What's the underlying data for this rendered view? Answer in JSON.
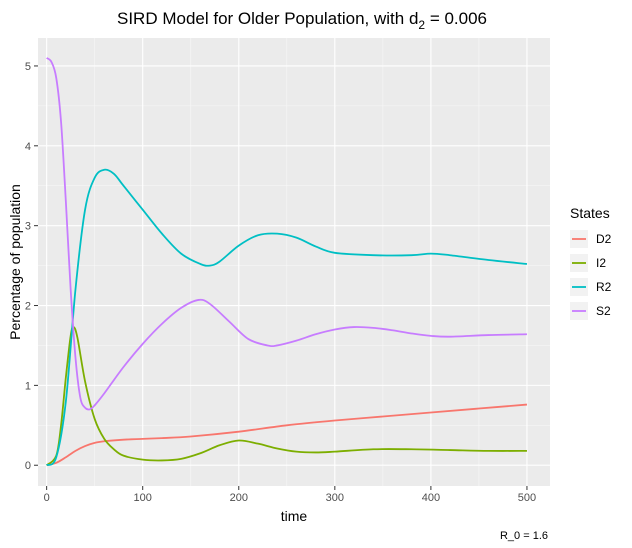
{
  "chart_data": {
    "type": "line",
    "title_main": "SIRD Model for Older Population, with d",
    "title_sub": "2",
    "title_tail": " = 0.006",
    "xlabel": "time",
    "ylabel": "Percentage of population",
    "caption": "R_0 = 1.6",
    "xlim": [
      -9,
      524
    ],
    "ylim": [
      -0.26,
      5.35
    ],
    "x_ticks": [
      0,
      100,
      200,
      300,
      400,
      500
    ],
    "y_ticks": [
      0,
      1,
      2,
      3,
      4,
      5
    ],
    "x_minor": [
      50,
      150,
      250,
      350,
      450
    ],
    "y_minor": [
      0.5,
      1.5,
      2.5,
      3.5,
      4.5
    ],
    "grid": true,
    "legend_title": "States",
    "legend_position": "right",
    "series": [
      {
        "name": "D2",
        "color": "#F8766D",
        "x": [
          0,
          10,
          20,
          30,
          40,
          50,
          60,
          80,
          100,
          120,
          150,
          200,
          250,
          300,
          350,
          400,
          450,
          500
        ],
        "y": [
          0,
          0.03,
          0.1,
          0.18,
          0.24,
          0.28,
          0.3,
          0.32,
          0.33,
          0.34,
          0.36,
          0.42,
          0.5,
          0.56,
          0.61,
          0.66,
          0.71,
          0.76
        ]
      },
      {
        "name": "I2",
        "color": "#7CAE00",
        "x": [
          0,
          10,
          15,
          20,
          25,
          28,
          32,
          40,
          50,
          60,
          70,
          80,
          100,
          120,
          140,
          160,
          180,
          200,
          220,
          240,
          260,
          280,
          300,
          340,
          380,
          420,
          460,
          500
        ],
        "y": [
          0,
          0.12,
          0.5,
          1.1,
          1.62,
          1.73,
          1.6,
          1.05,
          0.58,
          0.33,
          0.2,
          0.12,
          0.07,
          0.06,
          0.08,
          0.15,
          0.25,
          0.31,
          0.27,
          0.21,
          0.17,
          0.16,
          0.17,
          0.2,
          0.2,
          0.19,
          0.18,
          0.18
        ]
      },
      {
        "name": "R2",
        "color": "#00BFC4",
        "x": [
          0,
          10,
          20,
          30,
          40,
          50,
          60,
          70,
          80,
          100,
          120,
          140,
          160,
          170,
          180,
          200,
          220,
          240,
          260,
          280,
          300,
          340,
          380,
          400,
          420,
          460,
          500
        ],
        "y": [
          0,
          0.1,
          0.8,
          2.2,
          3.2,
          3.6,
          3.7,
          3.65,
          3.5,
          3.2,
          2.9,
          2.65,
          2.52,
          2.5,
          2.55,
          2.75,
          2.88,
          2.9,
          2.85,
          2.74,
          2.66,
          2.63,
          2.63,
          2.65,
          2.63,
          2.57,
          2.52
        ]
      },
      {
        "name": "S2",
        "color": "#C77CFF",
        "x": [
          0,
          5,
          10,
          15,
          20,
          25,
          30,
          35,
          40,
          45,
          50,
          60,
          80,
          100,
          120,
          140,
          158,
          170,
          190,
          210,
          230,
          240,
          260,
          280,
          300,
          320,
          340,
          360,
          380,
          400,
          420,
          460,
          500
        ],
        "y": [
          5.1,
          5.05,
          4.85,
          4.3,
          3.3,
          2.2,
          1.35,
          0.85,
          0.72,
          0.7,
          0.75,
          0.9,
          1.23,
          1.52,
          1.77,
          1.97,
          2.07,
          2.02,
          1.8,
          1.58,
          1.5,
          1.5,
          1.56,
          1.64,
          1.7,
          1.73,
          1.72,
          1.69,
          1.65,
          1.62,
          1.61,
          1.63,
          1.64
        ]
      }
    ]
  }
}
